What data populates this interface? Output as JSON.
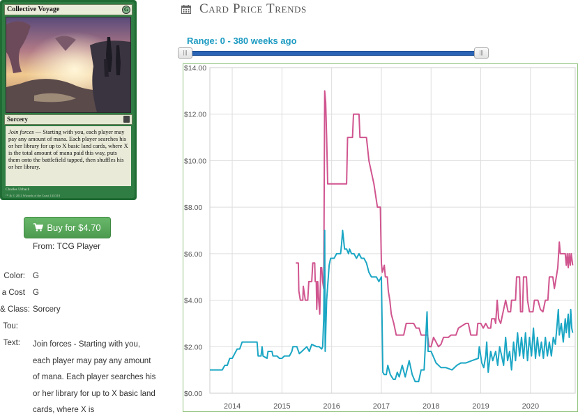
{
  "card": {
    "name": "Collective Voyage",
    "mana_symbol": "G",
    "type_line": "Sorcery",
    "ability_word": "Join forces",
    "rules_text": " — Starting with you, each player may pay any amount of mana. Each player searches his or her library for up to X basic land cards, where X is the total amount of mana paid this way, puts them onto the battlefield tapped, then shuffles his or her library.",
    "artist": "Charles Urbach",
    "copyright": "™ & © 2011 Wizards of the Coast 143/318"
  },
  "buy": {
    "label": "Buy for $4.70",
    "from": "From: TCG Player"
  },
  "details": {
    "color_label": "Color:",
    "color_value": "G",
    "cost_label": "a Cost",
    "cost_value": "G",
    "class_label": "& Class:",
    "class_value": "Sorcery",
    "tou_label": "Tou:",
    "text_label": "Text:",
    "text_value": "Join forces - Starting with you, each player may pay any amount of mana. Each player searches his or her library for up to X basic land cards, where X is"
  },
  "heading": {
    "title": "Card Price Trends",
    "icon": "calendar-icon"
  },
  "range": {
    "label": "Range: 0 - 380 weeks ago",
    "handle_glyph": "|||",
    "min": 0,
    "max": 380
  },
  "colors": {
    "foil_line": "#d0558f",
    "nonfoil_line": "#1ba6c4",
    "grid": "#dddddd",
    "frame": "#8dc07a",
    "buy_green": "#5cab5e",
    "range_blue": "#2a64b5"
  },
  "chart_data": {
    "type": "line",
    "xlabel": "",
    "ylabel": "",
    "xlim": [
      2013.55,
      2020.9
    ],
    "ylim": [
      0,
      14
    ],
    "grid": true,
    "x_ticks": [
      "2014",
      "2015",
      "2016",
      "2017",
      "2018",
      "2019",
      "2020"
    ],
    "x_tick_values": [
      2014,
      2015,
      2016,
      2017,
      2018,
      2019,
      2020
    ],
    "y_ticks": [
      "$0.00",
      "$2.00",
      "$4.00",
      "$6.00",
      "$8.00",
      "$10.00",
      "$12.00",
      "$14.00"
    ],
    "y_tick_values": [
      0,
      2,
      4,
      6,
      8,
      10,
      12,
      14
    ],
    "series": [
      {
        "color": "#d0558f",
        "points": [
          [
            2015.28,
            5.6
          ],
          [
            2015.33,
            5.6
          ],
          [
            2015.34,
            4.4
          ],
          [
            2015.37,
            4.0
          ],
          [
            2015.42,
            4.0
          ],
          [
            2015.43,
            4.6
          ],
          [
            2015.47,
            4.0
          ],
          [
            2015.52,
            4.0
          ],
          [
            2015.54,
            4.8
          ],
          [
            2015.6,
            4.8
          ],
          [
            2015.62,
            5.6
          ],
          [
            2015.66,
            5.6
          ],
          [
            2015.67,
            4.8
          ],
          [
            2015.69,
            4.8
          ],
          [
            2015.7,
            3.6
          ],
          [
            2015.72,
            4.8
          ],
          [
            2015.74,
            4.0
          ],
          [
            2015.76,
            3.4
          ],
          [
            2015.78,
            5.4
          ],
          [
            2015.8,
            5.4
          ],
          [
            2015.82,
            4.8
          ],
          [
            2015.84,
            4.5
          ],
          [
            2015.86,
            13.0
          ],
          [
            2015.88,
            12.5
          ],
          [
            2015.9,
            11.0
          ],
          [
            2015.92,
            9.0
          ],
          [
            2016.1,
            9.0
          ],
          [
            2016.25,
            9.0
          ],
          [
            2016.3,
            9.0
          ],
          [
            2016.32,
            11.0
          ],
          [
            2016.42,
            11.0
          ],
          [
            2016.44,
            12.0
          ],
          [
            2016.55,
            12.0
          ],
          [
            2016.57,
            11.0
          ],
          [
            2016.7,
            11.0
          ],
          [
            2016.75,
            10.0
          ],
          [
            2016.85,
            9.0
          ],
          [
            2016.92,
            8.0
          ],
          [
            2016.98,
            8.0
          ],
          [
            2017.0,
            5.6
          ],
          [
            2017.02,
            5.2
          ],
          [
            2017.06,
            5.5
          ],
          [
            2017.08,
            5.0
          ],
          [
            2017.12,
            5.0
          ],
          [
            2017.14,
            4.4
          ],
          [
            2017.17,
            4.0
          ],
          [
            2017.2,
            3.4
          ],
          [
            2017.25,
            3.0
          ],
          [
            2017.3,
            2.5
          ],
          [
            2017.45,
            2.5
          ],
          [
            2017.5,
            3.0
          ],
          [
            2017.65,
            3.0
          ],
          [
            2017.7,
            2.8
          ],
          [
            2017.76,
            2.8
          ],
          [
            2017.8,
            2.5
          ],
          [
            2017.93,
            2.5
          ],
          [
            2017.96,
            2.0
          ],
          [
            2018.0,
            2.0
          ],
          [
            2018.05,
            2.4
          ],
          [
            2018.1,
            2.2
          ],
          [
            2018.15,
            2.0
          ],
          [
            2018.2,
            2.1
          ],
          [
            2018.25,
            2.4
          ],
          [
            2018.35,
            2.4
          ],
          [
            2018.4,
            2.5
          ],
          [
            2018.5,
            2.5
          ],
          [
            2018.55,
            2.8
          ],
          [
            2018.7,
            3.0
          ],
          [
            2018.75,
            3.0
          ],
          [
            2018.8,
            2.5
          ],
          [
            2018.92,
            2.5
          ],
          [
            2018.94,
            3.0
          ],
          [
            2019.0,
            3.0
          ],
          [
            2019.05,
            2.8
          ],
          [
            2019.1,
            3.0
          ],
          [
            2019.15,
            2.8
          ],
          [
            2019.2,
            2.8
          ],
          [
            2019.22,
            3.2
          ],
          [
            2019.28,
            3.2
          ],
          [
            2019.3,
            3.0
          ],
          [
            2019.33,
            4.0
          ],
          [
            2019.36,
            3.2
          ],
          [
            2019.4,
            3.0
          ],
          [
            2019.45,
            3.5
          ],
          [
            2019.5,
            4.0
          ],
          [
            2019.55,
            3.5
          ],
          [
            2019.6,
            3.5
          ],
          [
            2019.62,
            4.0
          ],
          [
            2019.7,
            4.0
          ],
          [
            2019.72,
            5.0
          ],
          [
            2019.78,
            5.0
          ],
          [
            2019.8,
            3.5
          ],
          [
            2019.84,
            3.5
          ],
          [
            2019.86,
            5.0
          ],
          [
            2019.92,
            5.0
          ],
          [
            2019.94,
            4.0
          ],
          [
            2019.98,
            3.5
          ],
          [
            2020.05,
            3.5
          ],
          [
            2020.08,
            4.0
          ],
          [
            2020.15,
            4.0
          ],
          [
            2020.2,
            3.6
          ],
          [
            2020.25,
            3.5
          ],
          [
            2020.3,
            4.0
          ],
          [
            2020.35,
            4.0
          ],
          [
            2020.38,
            5.0
          ],
          [
            2020.45,
            5.0
          ],
          [
            2020.48,
            4.5
          ],
          [
            2020.52,
            5.0
          ],
          [
            2020.55,
            5.4
          ],
          [
            2020.58,
            6.5
          ],
          [
            2020.6,
            6.0
          ],
          [
            2020.7,
            6.0
          ],
          [
            2020.72,
            5.5
          ],
          [
            2020.74,
            6.0
          ],
          [
            2020.76,
            5.4
          ],
          [
            2020.78,
            6.0
          ],
          [
            2020.8,
            5.5
          ],
          [
            2020.82,
            6.0
          ],
          [
            2020.85,
            5.5
          ]
        ]
      },
      {
        "color": "#1ba6c4",
        "points": [
          [
            2013.55,
            1.0
          ],
          [
            2013.8,
            1.0
          ],
          [
            2013.85,
            1.2
          ],
          [
            2013.9,
            1.2
          ],
          [
            2013.95,
            1.5
          ],
          [
            2014.0,
            1.5
          ],
          [
            2014.05,
            1.7
          ],
          [
            2014.1,
            1.9
          ],
          [
            2014.15,
            1.9
          ],
          [
            2014.2,
            2.2
          ],
          [
            2014.35,
            2.2
          ],
          [
            2014.4,
            2.2
          ],
          [
            2014.5,
            2.2
          ],
          [
            2014.52,
            1.6
          ],
          [
            2014.58,
            1.6
          ],
          [
            2014.6,
            2.0
          ],
          [
            2014.62,
            1.6
          ],
          [
            2014.7,
            1.5
          ],
          [
            2014.72,
            1.8
          ],
          [
            2014.8,
            1.8
          ],
          [
            2014.82,
            1.6
          ],
          [
            2014.9,
            1.6
          ],
          [
            2014.95,
            1.5
          ],
          [
            2015.0,
            1.5
          ],
          [
            2015.05,
            1.6
          ],
          [
            2015.15,
            1.6
          ],
          [
            2015.2,
            1.8
          ],
          [
            2015.22,
            2.0
          ],
          [
            2015.3,
            2.0
          ],
          [
            2015.35,
            1.7
          ],
          [
            2015.4,
            1.8
          ],
          [
            2015.5,
            2.0
          ],
          [
            2015.55,
            1.8
          ],
          [
            2015.6,
            2.1
          ],
          [
            2015.7,
            2.0
          ],
          [
            2015.75,
            2.0
          ],
          [
            2015.8,
            1.9
          ],
          [
            2015.82,
            2.0
          ],
          [
            2015.84,
            3.2
          ],
          [
            2015.86,
            7.0
          ],
          [
            2015.87,
            1.8
          ],
          [
            2015.9,
            4.0
          ],
          [
            2015.95,
            5.5
          ],
          [
            2015.98,
            5.8
          ],
          [
            2016.05,
            5.8
          ],
          [
            2016.1,
            6.0
          ],
          [
            2016.18,
            6.0
          ],
          [
            2016.2,
            6.4
          ],
          [
            2016.22,
            7.0
          ],
          [
            2016.26,
            6.2
          ],
          [
            2016.3,
            6.2
          ],
          [
            2016.34,
            6.0
          ],
          [
            2016.36,
            6.2
          ],
          [
            2016.4,
            6.0
          ],
          [
            2016.45,
            6.0
          ],
          [
            2016.5,
            5.8
          ],
          [
            2016.55,
            6.0
          ],
          [
            2016.6,
            5.8
          ],
          [
            2016.65,
            5.8
          ],
          [
            2016.7,
            5.6
          ],
          [
            2016.75,
            5.2
          ],
          [
            2016.8,
            5.0
          ],
          [
            2016.85,
            5.0
          ],
          [
            2016.9,
            5.0
          ],
          [
            2016.95,
            4.8
          ],
          [
            2017.0,
            5.0
          ],
          [
            2017.03,
            0.9
          ],
          [
            2017.06,
            0.8
          ],
          [
            2017.1,
            0.8
          ],
          [
            2017.13,
            1.2
          ],
          [
            2017.18,
            0.8
          ],
          [
            2017.24,
            0.6
          ],
          [
            2017.28,
            0.6
          ],
          [
            2017.32,
            0.9
          ],
          [
            2017.36,
            0.7
          ],
          [
            2017.42,
            1.2
          ],
          [
            2017.48,
            0.7
          ],
          [
            2017.56,
            1.4
          ],
          [
            2017.62,
            0.8
          ],
          [
            2017.68,
            0.5
          ],
          [
            2017.75,
            0.5
          ],
          [
            2017.8,
            1.0
          ],
          [
            2017.86,
            1.0
          ],
          [
            2017.92,
            3.5
          ],
          [
            2017.94,
            1.8
          ],
          [
            2018.0,
            1.8
          ],
          [
            2018.1,
            1.3
          ],
          [
            2018.2,
            1.1
          ],
          [
            2018.3,
            1.1
          ],
          [
            2018.42,
            1.0
          ],
          [
            2018.52,
            1.2
          ],
          [
            2018.6,
            1.3
          ],
          [
            2018.7,
            1.3
          ],
          [
            2018.82,
            1.4
          ],
          [
            2018.95,
            1.5
          ],
          [
            2018.97,
            2.0
          ],
          [
            2019.0,
            1.6
          ],
          [
            2019.02,
            1.3
          ],
          [
            2019.06,
            1.1
          ],
          [
            2019.1,
            1.6
          ],
          [
            2019.12,
            2.2
          ],
          [
            2019.15,
            0.9
          ],
          [
            2019.2,
            1.8
          ],
          [
            2019.24,
            1.4
          ],
          [
            2019.3,
            1.8
          ],
          [
            2019.34,
            1.2
          ],
          [
            2019.38,
            2.0
          ],
          [
            2019.42,
            1.6
          ],
          [
            2019.46,
            1.2
          ],
          [
            2019.5,
            2.4
          ],
          [
            2019.54,
            1.4
          ],
          [
            2019.58,
            1.8
          ],
          [
            2019.62,
            1.0
          ],
          [
            2019.66,
            2.2
          ],
          [
            2019.7,
            1.4
          ],
          [
            2019.74,
            2.6
          ],
          [
            2019.78,
            1.6
          ],
          [
            2019.82,
            2.4
          ],
          [
            2019.86,
            1.5
          ],
          [
            2019.9,
            2.6
          ],
          [
            2019.94,
            1.4
          ],
          [
            2019.98,
            2.4
          ],
          [
            2020.02,
            1.6
          ],
          [
            2020.06,
            2.8
          ],
          [
            2020.1,
            1.5
          ],
          [
            2020.14,
            2.4
          ],
          [
            2020.18,
            1.6
          ],
          [
            2020.22,
            2.2
          ],
          [
            2020.26,
            1.5
          ],
          [
            2020.3,
            2.4
          ],
          [
            2020.34,
            1.6
          ],
          [
            2020.38,
            2.2
          ],
          [
            2020.42,
            1.6
          ],
          [
            2020.46,
            2.4
          ],
          [
            2020.5,
            2.1
          ],
          [
            2020.53,
            2.8
          ],
          [
            2020.56,
            3.6
          ],
          [
            2020.58,
            2.5
          ],
          [
            2020.62,
            3.0
          ],
          [
            2020.66,
            2.2
          ],
          [
            2020.7,
            3.2
          ],
          [
            2020.72,
            2.6
          ],
          [
            2020.76,
            3.4
          ],
          [
            2020.78,
            2.4
          ],
          [
            2020.81,
            3.6
          ],
          [
            2020.83,
            2.8
          ],
          [
            2020.85,
            2.6
          ]
        ]
      }
    ]
  }
}
